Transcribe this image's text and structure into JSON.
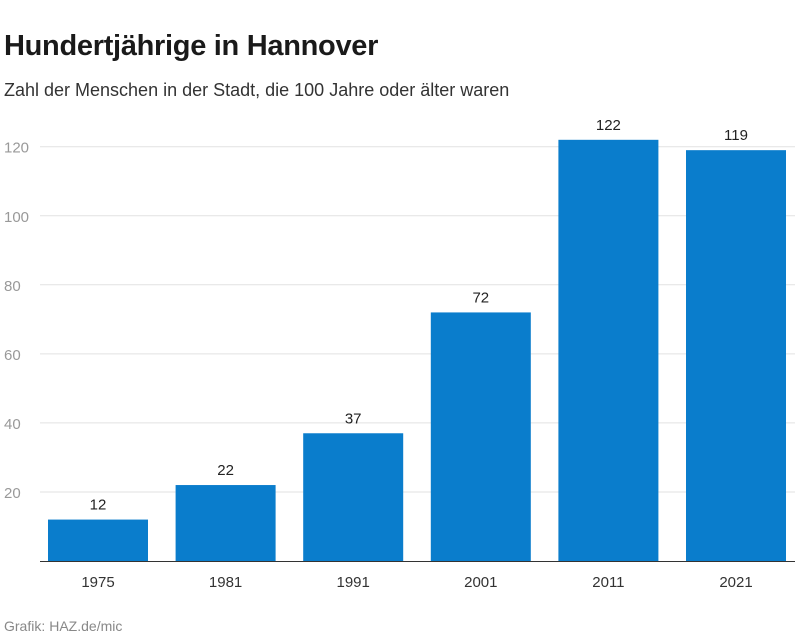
{
  "header": {
    "title": "Hundertjährige in Hannover",
    "subtitle": "Zahl der Menschen in der Stadt, die 100 Jahre oder älter waren"
  },
  "footer": {
    "source_label": "Grafik:",
    "source_value": "HAZ.de/mic"
  },
  "colors": {
    "bar": "#0a7dcc",
    "grid": "#e2e2e2",
    "axis_tick": "#999999",
    "value_label": "#222222",
    "baseline": "#333333"
  },
  "chart_data": {
    "type": "bar",
    "title": "Hundertjährige in Hannover",
    "subtitle": "Zahl der Menschen in der Stadt, die 100 Jahre oder älter waren",
    "categories": [
      "1975",
      "1981",
      "1991",
      "2001",
      "2011",
      "2021"
    ],
    "values": [
      12,
      22,
      37,
      72,
      122,
      119
    ],
    "xlabel": "",
    "ylabel": "",
    "ylim": [
      0,
      126
    ],
    "yticks": [
      20,
      40,
      60,
      80,
      100,
      120
    ],
    "grid": true,
    "data_labels": true
  }
}
